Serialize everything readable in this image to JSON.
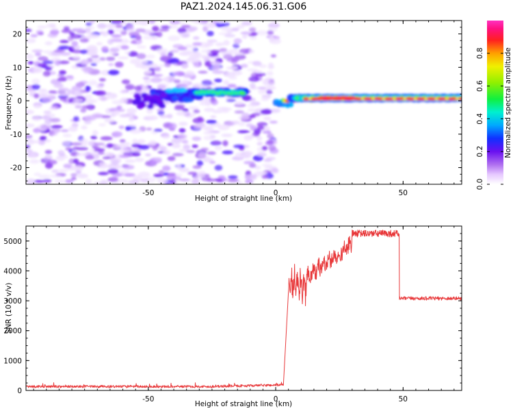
{
  "figure_title": "PAZ1.2024.145.06.31.G06",
  "colors": {
    "snr_line": "#e8383a",
    "axis": "#000000",
    "background": "#ffffff"
  },
  "chart_data": [
    {
      "type": "heatmap",
      "title": "",
      "xlabel": "Height of straight line (km)",
      "ylabel": "Frequency (Hz)",
      "xlim": [
        -98,
        73
      ],
      "ylim": [
        -25,
        24
      ],
      "xticks": [
        -50,
        0,
        50
      ],
      "yticks": [
        -20,
        -10,
        0,
        10,
        20
      ],
      "colorbar": {
        "label": "Normalized spectral amplitude",
        "range": [
          0.0,
          1.0
        ],
        "ticks": [
          "0.0",
          "0.2",
          "0.4",
          "0.6",
          "0.8"
        ],
        "colormap": "gist_ncar-like (white → violet → blue → cyan → green → yellow → orange → red → magenta)"
      },
      "features": [
        {
          "x_range": [
            -98,
            0
          ],
          "y_range": [
            -25,
            24
          ],
          "level": 0.15,
          "note": "scattered low-amplitude noise"
        },
        {
          "x_range": [
            -48,
            -30
          ],
          "y_range": [
            -2,
            5
          ],
          "level": 0.35,
          "note": "blue/cyan band"
        },
        {
          "x_range": [
            -32,
            -12
          ],
          "y_range": [
            1,
            4
          ],
          "level": 0.45,
          "note": "cyan/green band"
        },
        {
          "x_range": [
            0,
            73
          ],
          "y_range": [
            -1,
            2
          ],
          "level": 0.9,
          "note": "high-amplitude band near 0–1 Hz"
        }
      ],
      "legend": "none",
      "grid": false
    },
    {
      "type": "line",
      "title": "",
      "xlabel": "Height of straight line (km)",
      "ylabel": "SNR (10 * v/v)",
      "xlim": [
        -98,
        73
      ],
      "ylim": [
        0,
        5500
      ],
      "xticks": [
        -50,
        0,
        50
      ],
      "yticks": [
        0,
        1000,
        2000,
        3000,
        4000,
        5000
      ],
      "series": [
        {
          "color": "#e8383a",
          "segments": [
            {
              "x": [
                -98,
                3
              ],
              "y_mean": 130,
              "noise": 40,
              "note": "low noise floor rising to ~200 near x=-10"
            },
            {
              "x": [
                3,
                5
              ],
              "y": [
                150,
                3300
              ],
              "note": "sharp rise"
            },
            {
              "x": [
                5,
                12
              ],
              "y_mean": 3500,
              "noise": 450
            },
            {
              "x": [
                12,
                30
              ],
              "y": [
                3800,
                4900
              ],
              "noise": 250
            },
            {
              "x": [
                30,
                48.5
              ],
              "y_mean": 5250,
              "noise": 120
            },
            {
              "x": [
                48.5,
                73
              ],
              "y_mean": 3080,
              "noise": 60
            }
          ]
        }
      ],
      "legend": "none",
      "grid": false
    }
  ]
}
